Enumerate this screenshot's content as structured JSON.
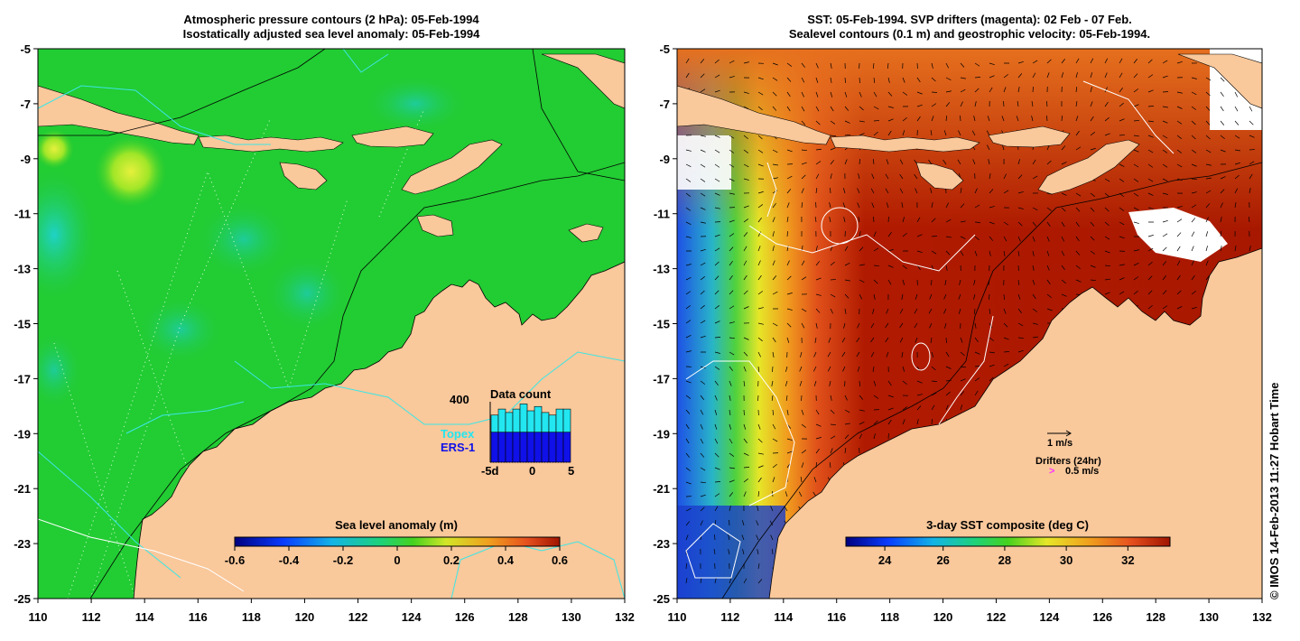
{
  "left_map": {
    "title_line1": "Atmospheric pressure contours (2 hPa): 05-Feb-1994",
    "title_line2": "Isostatically adjusted sea level anomaly: 05-Feb-1994",
    "colorbar": {
      "label": "Sea level anomaly (m)",
      "ticks": [
        "-0.6",
        "-0.4",
        "-0.2",
        "0",
        "0.2",
        "0.4",
        "0.6"
      ]
    },
    "data_count": {
      "title": "Data count",
      "max_label": "400",
      "series_topex": "Topex",
      "series_ers": "ERS-1",
      "x_ticks": [
        "-5d",
        "0",
        "5"
      ],
      "topex_color": "#22e6f0",
      "ers_color": "#1010e8"
    }
  },
  "right_map": {
    "title_line1": "SST: 05-Feb-1994. SVP drifters (magenta): 02 Feb - 07 Feb.",
    "title_line2": "Sealevel contours (0.1 m) and geostrophic velocity: 05-Feb-1994.",
    "colorbar": {
      "label": "3-day SST composite (deg C)",
      "ticks": [
        "24",
        "26",
        "28",
        "30",
        "32"
      ]
    },
    "scale_label": "1 m/s",
    "drifters_label": "Drifters (24hr)",
    "drifter_symbol": ">",
    "drifter_speed": "0.5 m/s"
  },
  "axes": {
    "lat_ticks": [
      "-5",
      "-7",
      "-9",
      "-11",
      "-13",
      "-15",
      "-17",
      "-19",
      "-21",
      "-23",
      "-25"
    ],
    "lon_ticks": [
      "110",
      "112",
      "114",
      "116",
      "118",
      "120",
      "122",
      "124",
      "126",
      "128",
      "130",
      "132"
    ]
  },
  "credit": "© IMOS 14-Feb-2013 11:27 Hobart Time",
  "colors": {
    "land": "#f9c89b",
    "sea_green": "#22cc33",
    "sst_hot": "#b01a00"
  }
}
